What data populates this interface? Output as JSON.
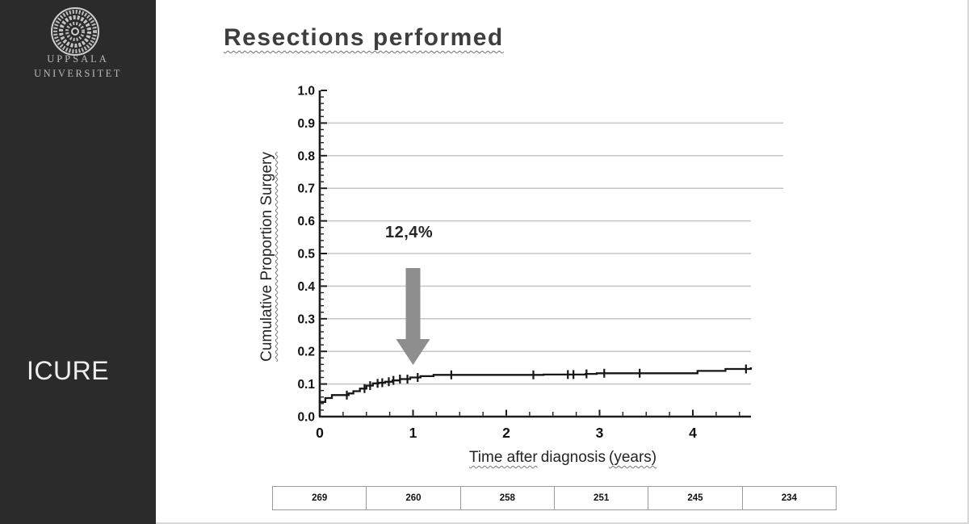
{
  "sidebar": {
    "bg_color": "#2b2b2b",
    "logo": "uppsala-university-seal",
    "org_line1": "UPPSALA",
    "org_line2": "UNIVERSITET",
    "footer_label": "ICURE"
  },
  "slide": {
    "title": "Resections performed"
  },
  "chart_data": {
    "type": "line",
    "subtype": "kaplan-meier-cumulative-step",
    "title": "Resections performed",
    "xlabel": "Time after diagnosis (years)",
    "xlabel_parts": [
      {
        "text": "Time after",
        "wavy": true
      },
      {
        "text": "diagnosis",
        "wavy": false
      },
      {
        "text": "(years)",
        "wavy": true
      }
    ],
    "ylabel": "Cumulative Proportion Surgery",
    "xlim": [
      0,
      4.62
    ],
    "ylim": [
      0.0,
      1.0
    ],
    "grid": "horizontal-only",
    "gridline_color": "#c6c6c6",
    "axis_color": "#1c1c1c",
    "curve_color": "#161616",
    "x_ticks": [
      {
        "v": 0,
        "label": "0"
      },
      {
        "v": 1,
        "label": "1"
      },
      {
        "v": 2,
        "label": "2"
      },
      {
        "v": 3,
        "label": "3"
      },
      {
        "v": 4,
        "label": "4"
      }
    ],
    "y_ticks": [
      {
        "v": 0.0,
        "label": "0.0"
      },
      {
        "v": 0.1,
        "label": "0.1"
      },
      {
        "v": 0.2,
        "label": "0.2"
      },
      {
        "v": 0.3,
        "label": "0.3"
      },
      {
        "v": 0.4,
        "label": "0.4"
      },
      {
        "v": 0.5,
        "label": "0.5"
      },
      {
        "v": 0.6,
        "label": "0.6"
      },
      {
        "v": 0.7,
        "label": "0.7"
      },
      {
        "v": 0.8,
        "label": "0.8"
      },
      {
        "v": 0.9,
        "label": "0.9"
      },
      {
        "v": 1.0,
        "label": "1.0"
      }
    ],
    "annotation": {
      "text": "12,4%",
      "x": 1.0,
      "arrow": "down",
      "arrow_color": "#8e8e8e"
    },
    "series": [
      {
        "name": "Cumulative proportion surgery",
        "step_points": [
          [
            0,
            0.045
          ],
          [
            0.06,
            0.057
          ],
          [
            0.13,
            0.066
          ],
          [
            0.31,
            0.071
          ],
          [
            0.36,
            0.078
          ],
          [
            0.43,
            0.086
          ],
          [
            0.5,
            0.095
          ],
          [
            0.57,
            0.102
          ],
          [
            0.63,
            0.104
          ],
          [
            0.7,
            0.107
          ],
          [
            0.78,
            0.111
          ],
          [
            0.86,
            0.115
          ],
          [
            0.97,
            0.12
          ],
          [
            1.08,
            0.124
          ],
          [
            1.22,
            0.128
          ],
          [
            2.4,
            0.129
          ],
          [
            2.85,
            0.131
          ],
          [
            2.97,
            0.133
          ],
          [
            4.05,
            0.14
          ],
          [
            4.35,
            0.146
          ],
          [
            4.62,
            0.148
          ]
        ]
      }
    ],
    "censor_marks_x": [
      0.29,
      0.48,
      0.54,
      0.62,
      0.67,
      0.74,
      0.79,
      0.86,
      0.94,
      1.05,
      1.41,
      2.29,
      2.66,
      2.72,
      2.86,
      3.05,
      3.43,
      4.57
    ],
    "at_risk_counts": [
      "269",
      "260",
      "258",
      "251",
      "245",
      "234"
    ]
  }
}
